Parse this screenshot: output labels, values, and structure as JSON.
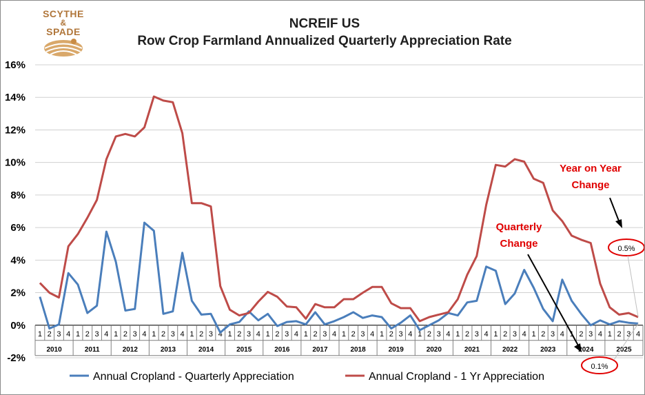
{
  "brand": {
    "line1": "SCYTHE",
    "line2": "&",
    "line3": "SPADE"
  },
  "chart_data": {
    "type": "line",
    "title": "NCREIF US",
    "subtitle": "Row Crop Farmland Annualized Quarterly Appreciation Rate",
    "xlabel": "",
    "ylabel": "",
    "ylim": [
      -2,
      16
    ],
    "yticks": [
      "-2%",
      "0%",
      "2%",
      "4%",
      "6%",
      "8%",
      "10%",
      "12%",
      "14%",
      "16%"
    ],
    "quarter_labels": [
      "1",
      "2",
      "3",
      "4"
    ],
    "years": [
      "2010",
      "2011",
      "2012",
      "2013",
      "2014",
      "2015",
      "2016",
      "2017",
      "2018",
      "2019",
      "2020",
      "2021",
      "2022",
      "2023",
      "2024",
      "2025"
    ],
    "grid": true,
    "legend_position": "bottom",
    "series": [
      {
        "name": "Annual Cropland - Quarterly Appreciation",
        "color": "#4a7ebb",
        "values": [
          1.75,
          -0.2,
          0.05,
          3.2,
          2.5,
          0.75,
          1.2,
          5.75,
          3.9,
          0.9,
          1.0,
          6.3,
          5.8,
          0.7,
          0.85,
          4.45,
          1.5,
          0.65,
          0.7,
          -0.45,
          0.05,
          0.2,
          0.85,
          0.3,
          0.7,
          -0.05,
          0.2,
          0.25,
          0.05,
          0.8,
          0.05,
          0.25,
          0.5,
          0.8,
          0.45,
          0.6,
          0.5,
          -0.2,
          0.15,
          0.6,
          -0.3,
          0.0,
          0.3,
          0.75,
          0.6,
          1.4,
          1.5,
          3.6,
          3.35,
          1.3,
          1.95,
          3.4,
          2.3,
          1.0,
          0.25,
          2.8,
          1.5,
          0.7,
          0.0,
          0.3,
          0.05,
          0.25,
          0.15,
          0.1
        ]
      },
      {
        "name": "Annual Cropland -  1 Yr Appreciation",
        "color": "#be4b48",
        "values": [
          2.6,
          2.0,
          1.7,
          4.85,
          5.6,
          6.6,
          7.7,
          10.2,
          11.6,
          11.75,
          11.6,
          12.15,
          14.05,
          13.8,
          13.7,
          11.8,
          7.5,
          7.5,
          7.3,
          2.4,
          0.95,
          0.6,
          0.75,
          1.45,
          2.05,
          1.75,
          1.15,
          1.1,
          0.4,
          1.3,
          1.1,
          1.1,
          1.6,
          1.6,
          2.0,
          2.35,
          2.35,
          1.35,
          1.05,
          1.05,
          0.25,
          0.5,
          0.65,
          0.8,
          1.6,
          3.1,
          4.25,
          7.4,
          9.85,
          9.75,
          10.2,
          10.05,
          9.0,
          8.75,
          7.05,
          6.4,
          5.5,
          5.25,
          5.05,
          2.55,
          1.1,
          0.65,
          0.75,
          0.5
        ]
      }
    ],
    "annotations": {
      "yoy": {
        "line1": "Year on Year",
        "line2": "Change",
        "callout": "0.5%"
      },
      "quarterly": {
        "line1": "Quarterly",
        "line2": "Change",
        "callout": "0.1%"
      }
    }
  }
}
